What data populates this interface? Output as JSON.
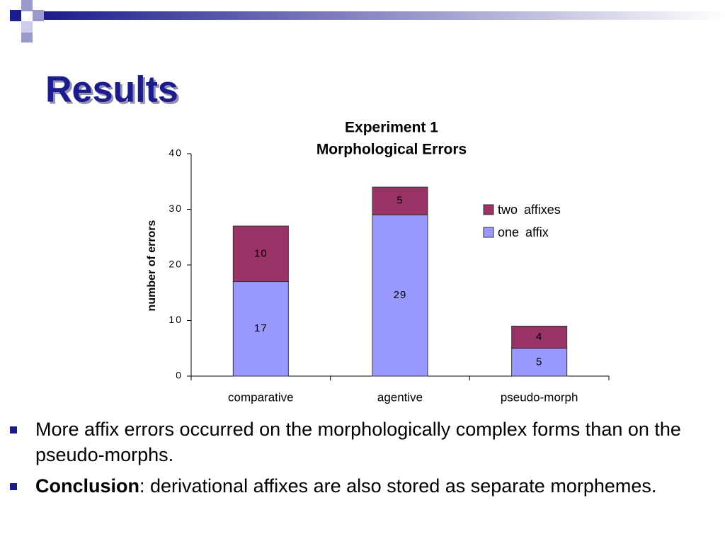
{
  "slide_title": "Results",
  "chart_data": {
    "type": "stacked-bar",
    "title": [
      "Experiment 1",
      "Morphological Errors"
    ],
    "y_label": "number of errors",
    "categories": [
      "comparative",
      "agentive",
      "pseudo-morph"
    ],
    "series": [
      {
        "name": "one affix",
        "color": "#9999ff",
        "values": [
          17,
          29,
          5
        ]
      },
      {
        "name": "two affixes",
        "color": "#993366",
        "values": [
          10,
          5,
          4
        ]
      }
    ],
    "ylim": [
      0,
      40
    ],
    "yticks": [
      0,
      10,
      20,
      30,
      40
    ],
    "grid": false,
    "legend": "right"
  },
  "bullets": [
    {
      "text": "More affix errors occurred on the morphologically complex forms than on the pseudo-morphs."
    },
    {
      "bold": "Conclusion",
      "text": ": derivational affixes are also stored as separate morphemes."
    }
  ]
}
